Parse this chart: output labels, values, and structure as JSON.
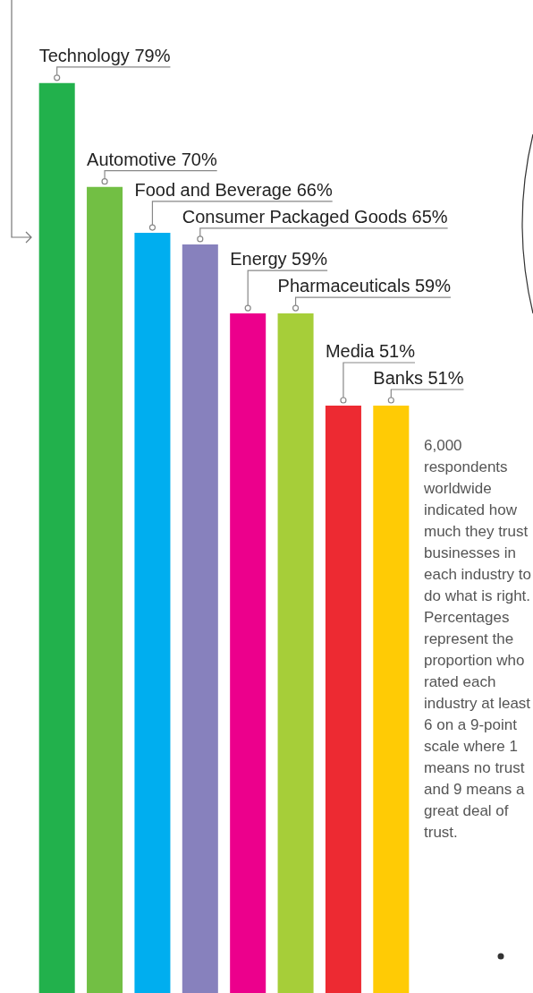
{
  "chart_data": {
    "type": "bar",
    "categories": [
      null,
      null,
      null,
      null,
      null,
      null,
      null,
      null
    ],
    "values": [
      79,
      70,
      66,
      65,
      59,
      59,
      51,
      51
    ],
    "value_labels": [
      "Technology 79%",
      "Automotive 70%",
      "Food and Beverage 66%",
      "Consumer Packaged Goods 65%",
      "Energy 59%",
      "Pharmaceuticals 59%",
      "Media 51%",
      "Banks 51%"
    ],
    "colors": [
      "#22b14c",
      "#72bf44",
      "#00aeef",
      "#8781bd",
      "#ec008c",
      "#a6ce39",
      "#ed2a32",
      "#ffcb05"
    ],
    "legend": false,
    "annotations": [
      "6,000 respondents worldwide indicated how much they trust businesses in each industry to do what is right. Percentages represent the proportion who rated each industry at least 6 on a 9-point scale where 1 means no trust and 9 means a great deal of trust."
    ]
  }
}
